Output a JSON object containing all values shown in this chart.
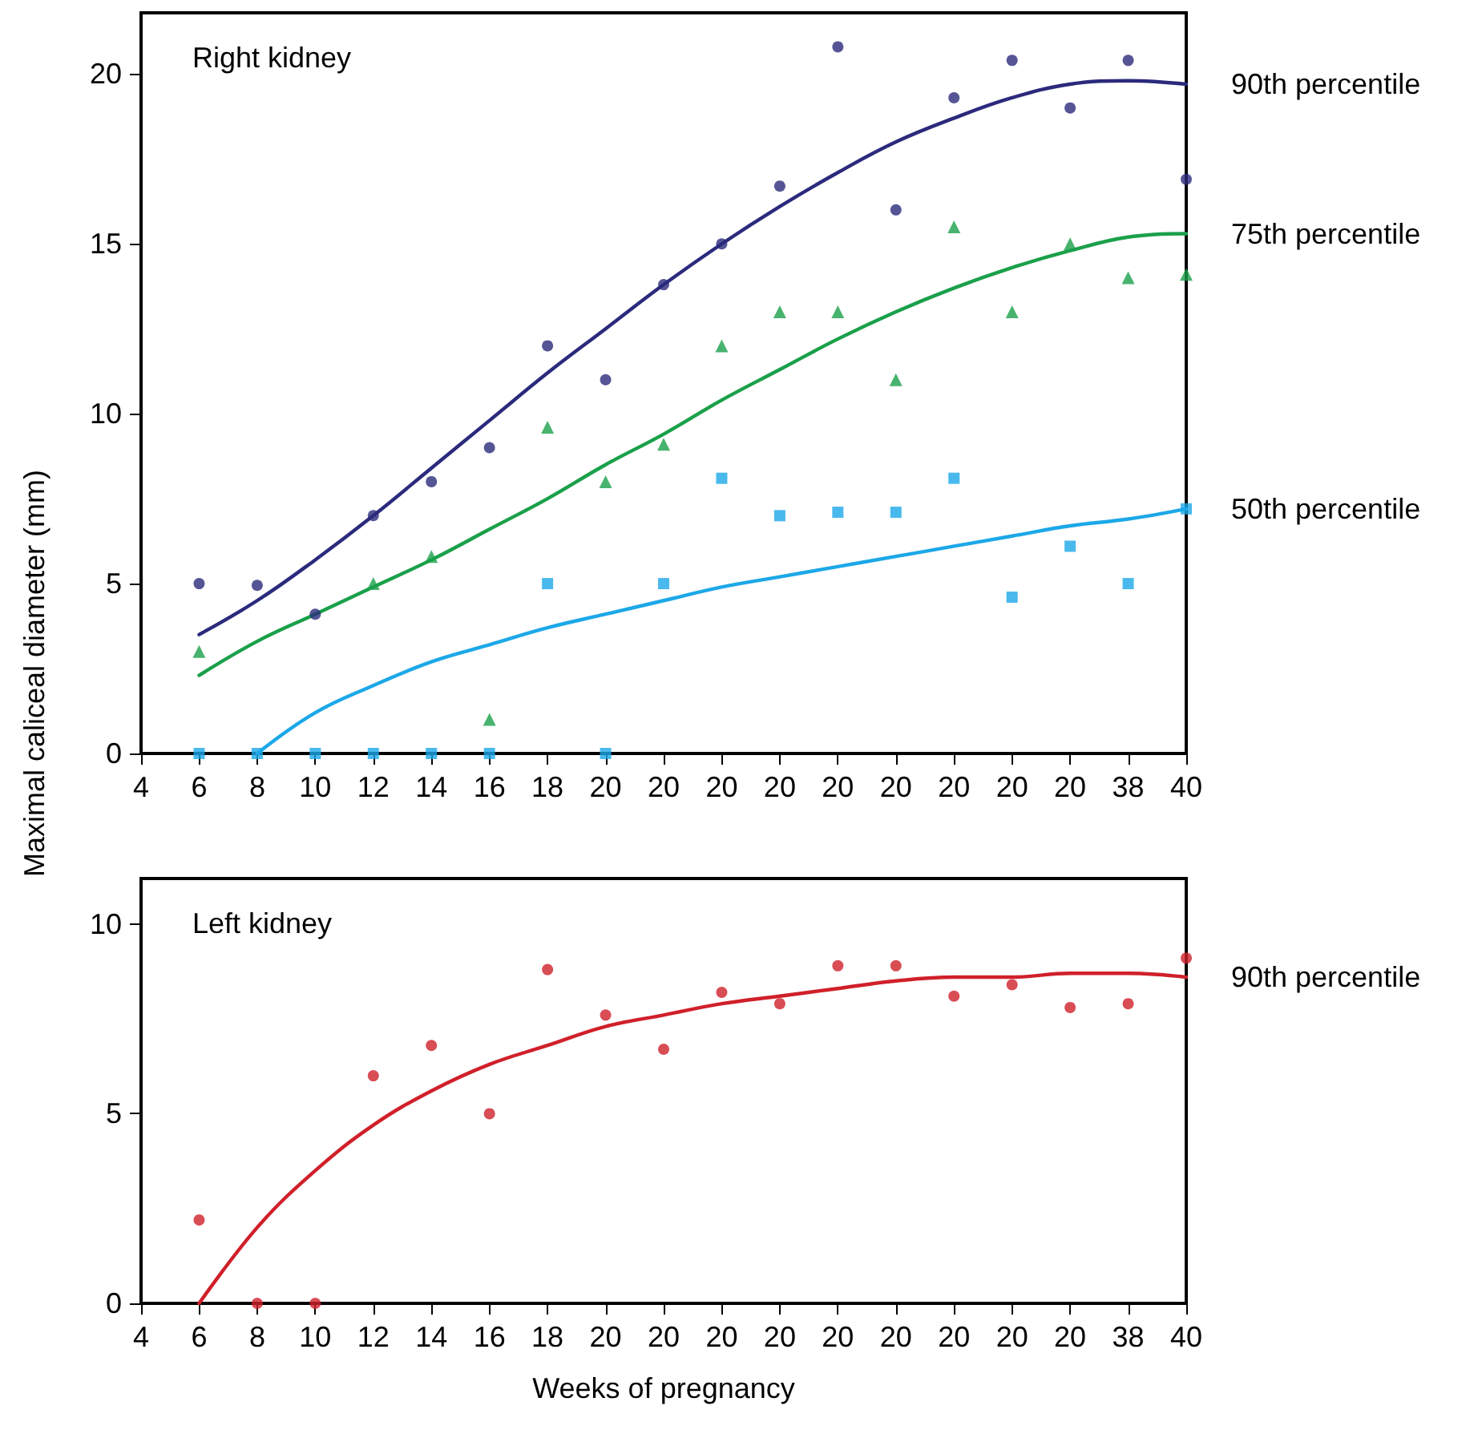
{
  "chart_data": [
    {
      "type": "scatter",
      "title": "Right kidney",
      "ylabel": "Maximal caliceal diameter (mm)",
      "categories": [
        "4",
        "6",
        "8",
        "10",
        "12",
        "14",
        "16",
        "18",
        "20",
        "20",
        "20",
        "20",
        "20",
        "20",
        "20",
        "20",
        "20",
        "38",
        "40"
      ],
      "ylim": [
        0,
        21.8
      ],
      "yticks": [
        0,
        5,
        10,
        15,
        20
      ],
      "grid": false,
      "legend": false,
      "series": [
        {
          "marker": "circle",
          "color": "#2b2a7c",
          "values": [
            null,
            5.0,
            4.95,
            4.1,
            7.0,
            8.0,
            9.0,
            12.0,
            11.0,
            13.8,
            15.0,
            16.7,
            20.8,
            16.0,
            19.3,
            20.4,
            19.0,
            20.4,
            16.9
          ]
        },
        {
          "marker": "triangle",
          "color": "#1aa04a",
          "values": [
            null,
            3.0,
            null,
            null,
            5.0,
            5.8,
            1.0,
            9.6,
            8.0,
            9.1,
            12.0,
            13.0,
            13.0,
            11.0,
            15.5,
            13.0,
            15.0,
            14.0,
            14.1
          ]
        },
        {
          "marker": "square",
          "color": "#1ca8e8",
          "values": [
            null,
            0,
            0,
            0,
            0,
            0,
            0,
            5.0,
            0,
            5.0,
            8.1,
            7.0,
            7.1,
            7.1,
            8.1,
            4.6,
            6.1,
            5.0,
            7.2
          ]
        },
        {
          "type": "line",
          "marker": "none",
          "name": "90th percentile",
          "color": "#2b2a7c",
          "values": [
            null,
            3.5,
            4.5,
            5.7,
            7.0,
            8.4,
            9.8,
            11.2,
            12.5,
            13.8,
            15.0,
            16.1,
            17.1,
            18.0,
            18.7,
            19.3,
            19.7,
            19.8,
            19.7
          ]
        },
        {
          "type": "line",
          "marker": "none",
          "name": "75th percentile",
          "color": "#1aa04a",
          "values": [
            null,
            2.3,
            3.3,
            4.1,
            4.9,
            5.7,
            6.6,
            7.5,
            8.5,
            9.4,
            10.4,
            11.3,
            12.2,
            13.0,
            13.7,
            14.3,
            14.8,
            15.2,
            15.3
          ]
        },
        {
          "type": "line",
          "marker": "none",
          "name": "50th percentile",
          "color": "#1ca8e8",
          "values": [
            null,
            null,
            0,
            1.2,
            2.0,
            2.7,
            3.2,
            3.7,
            4.1,
            4.5,
            4.9,
            5.2,
            5.5,
            5.8,
            6.1,
            6.4,
            6.7,
            6.9,
            7.2
          ]
        }
      ]
    },
    {
      "type": "scatter",
      "title": "Left kidney",
      "xlabel": "Weeks of pregnancy",
      "categories": [
        "4",
        "6",
        "8",
        "10",
        "12",
        "14",
        "16",
        "18",
        "20",
        "20",
        "20",
        "20",
        "20",
        "20",
        "20",
        "20",
        "20",
        "38",
        "40"
      ],
      "ylim": [
        0,
        11.2
      ],
      "yticks": [
        0,
        5,
        10
      ],
      "grid": false,
      "legend": false,
      "series": [
        {
          "marker": "circle",
          "color": "#d0202a",
          "values": [
            null,
            2.2,
            0,
            0,
            6.0,
            6.8,
            5.0,
            8.8,
            7.6,
            6.7,
            8.2,
            7.9,
            8.9,
            8.9,
            8.1,
            8.4,
            7.8,
            7.9,
            9.1
          ]
        },
        {
          "type": "line",
          "marker": "none",
          "name": "90th percentile",
          "color": "#d0202a",
          "values": [
            null,
            0,
            2.0,
            3.5,
            4.7,
            5.6,
            6.3,
            6.8,
            7.3,
            7.6,
            7.9,
            8.1,
            8.3,
            8.5,
            8.6,
            8.6,
            8.7,
            8.7,
            8.6
          ]
        }
      ]
    }
  ]
}
